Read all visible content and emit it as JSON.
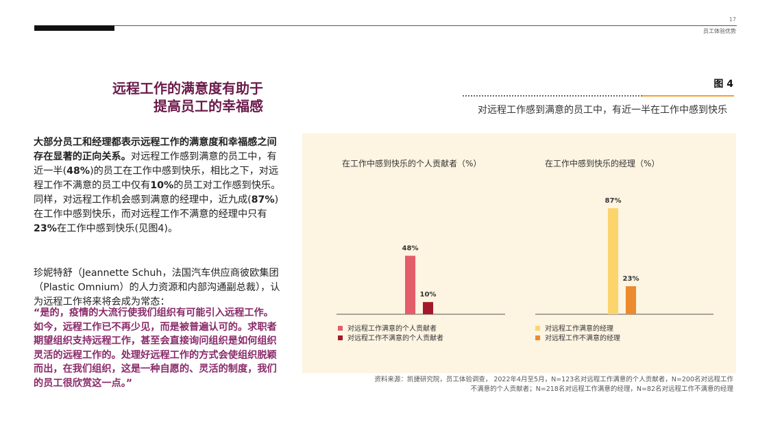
{
  "header": {
    "page_number": "17",
    "section": "员工体验优势"
  },
  "title": {
    "line1": "远程工作的满意度有助于",
    "line2": "提高员工的幸福感"
  },
  "body": {
    "p1_bold": "大部分员工和经理都表示远程工作的满意度和幸福感之间存在显著的正向关系。",
    "p1_a": "对远程工作感到满意的员工中，有近一半(",
    "p1_v1": "48%",
    "p1_b": ")的员工在工作中感到快乐，相比之下，对远程工作不满意的员工中仅有",
    "p1_v2": "10%",
    "p1_c": "的员工对工作感到快乐。同样，对远程工作机会感到满意的经理中，近九成(",
    "p1_v3": "87%",
    "p1_d": ")在工作中感到快乐，而对远程工作不满意的经理中只有",
    "p1_v4": "23%",
    "p1_e": "在工作中感到快乐(见图4)。",
    "p2": "珍妮特舒（Jeannette Schuh，法国汽车供应商彼欧集团（Plastic Omnium）的人力资源和内部沟通副总裁），认为远程工作将来将会成为常态：",
    "quote": "“是的，疫情的大流行使我们组织有可能引入远程工作。如今，远程工作已不再少见，而是被普遍认可的。求职者期望组织支持远程工作，甚至会直接询问组织是如何组织灵活的远程工作的。处理好远程工作的方式会使组织脱颖而出，在我们组织，这是一种自愿的、灵活的制度，我们的员工很欣赏这一点。”"
  },
  "figure": {
    "label": "图 4",
    "subtitle": "对远程工作感到满意的员工中，有近一半在工作中感到快乐",
    "source_line1": "资料来源：凯捷研究院，员工体验调查， 2022年4月至5月，N=123名对远程工作满意的个人贡献者，N=200名对远程工作",
    "source_line2": "不满意的个人贡献者；N=218名对远程工作满意的经理，N=82名对远程工作不满意的经理"
  },
  "colors": {
    "title": "#6b1a4a",
    "quote": "#8a2a6a",
    "ic_satisfied": "#e35d6a",
    "ic_unsatisfied": "#a3192b",
    "mgr_satisfied": "#fbd46c",
    "mgr_unsatisfied": "#ec8a2e",
    "panel": "#fdf4e2"
  },
  "chart_data": [
    {
      "type": "bar",
      "title": "在工作中感到快乐的个人贡献者（%）",
      "categories": [
        "对远程工作满意的个人贡献者",
        "对远程工作不满意的个人贡献者"
      ],
      "values": [
        48,
        10
      ],
      "labels": [
        "48%",
        "10%"
      ],
      "ylim": [
        0,
        100
      ],
      "legend": "bottom-left",
      "grid": false
    },
    {
      "type": "bar",
      "title": "在工作中感到快乐的经理（%）",
      "categories": [
        "对远程工作满意的经理",
        "对远程工作不满意的经理"
      ],
      "values": [
        87,
        23
      ],
      "labels": [
        "87%",
        "23%"
      ],
      "ylim": [
        0,
        100
      ],
      "legend": "bottom-left",
      "grid": false
    }
  ]
}
